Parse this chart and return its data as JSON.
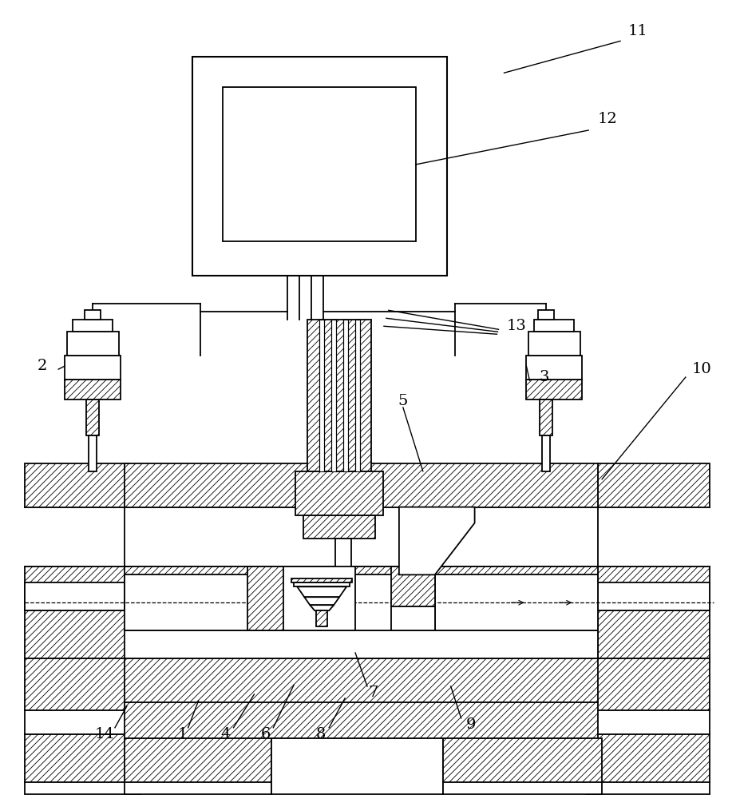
{
  "bg_color": "#ffffff",
  "lc": "#000000",
  "lw": 1.3,
  "hatch_lw": 0.5
}
